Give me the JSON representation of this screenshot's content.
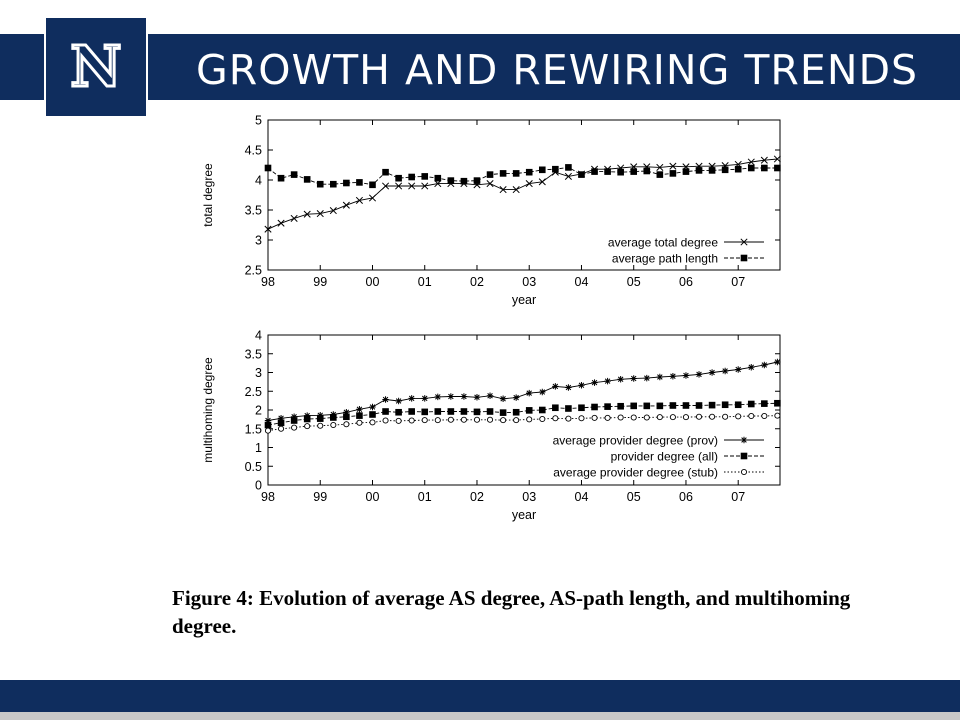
{
  "slide": {
    "title": "GROWTH AND REWIRING TRENDS",
    "logo_letter": "N",
    "brand_color": "#0f2d5e",
    "caption": "Figure 4: Evolution of average AS degree, AS-path length, and multihoming degree."
  },
  "chart_data": [
    {
      "type": "line",
      "ylabel": "total degree",
      "xlabel": "year",
      "xlim": [
        1998,
        2007.8
      ],
      "ylim": [
        2.5,
        5
      ],
      "yticks": [
        "2.5",
        "3",
        "3.5",
        "4",
        "4.5",
        "5"
      ],
      "xticks": [
        "98",
        "99",
        "00",
        "01",
        "02",
        "03",
        "04",
        "05",
        "06",
        "07"
      ],
      "legend_position": "bottom-right",
      "series": [
        {
          "name": "average total degree",
          "marker": "x",
          "dash": "solid",
          "points": [
            [
              1998.0,
              3.18
            ],
            [
              1998.25,
              3.28
            ],
            [
              1998.5,
              3.36
            ],
            [
              1998.75,
              3.43
            ],
            [
              1999.0,
              3.44
            ],
            [
              1999.25,
              3.49
            ],
            [
              1999.5,
              3.58
            ],
            [
              1999.75,
              3.66
            ],
            [
              2000.0,
              3.7
            ],
            [
              2000.25,
              3.9
            ],
            [
              2000.5,
              3.9
            ],
            [
              2000.75,
              3.9
            ],
            [
              2001.0,
              3.9
            ],
            [
              2001.25,
              3.94
            ],
            [
              2001.5,
              3.94
            ],
            [
              2001.75,
              3.94
            ],
            [
              2002.0,
              3.92
            ],
            [
              2002.25,
              3.94
            ],
            [
              2002.5,
              3.84
            ],
            [
              2002.75,
              3.84
            ],
            [
              2003.0,
              3.94
            ],
            [
              2003.25,
              3.97
            ],
            [
              2003.5,
              4.13
            ],
            [
              2003.75,
              4.06
            ],
            [
              2004.0,
              4.1
            ],
            [
              2004.25,
              4.18
            ],
            [
              2004.5,
              4.18
            ],
            [
              2004.75,
              4.2
            ],
            [
              2005.0,
              4.22
            ],
            [
              2005.25,
              4.22
            ],
            [
              2005.5,
              4.21
            ],
            [
              2005.75,
              4.23
            ],
            [
              2006.0,
              4.22
            ],
            [
              2006.25,
              4.23
            ],
            [
              2006.5,
              4.23
            ],
            [
              2006.75,
              4.24
            ],
            [
              2007.0,
              4.26
            ],
            [
              2007.25,
              4.3
            ],
            [
              2007.5,
              4.33
            ],
            [
              2007.75,
              4.35
            ]
          ]
        },
        {
          "name": "average path length",
          "marker": "square",
          "dash": "dashed",
          "points": [
            [
              1998.0,
              4.2
            ],
            [
              1998.25,
              4.03
            ],
            [
              1998.5,
              4.09
            ],
            [
              1998.75,
              4.01
            ],
            [
              1999.0,
              3.93
            ],
            [
              1999.25,
              3.93
            ],
            [
              1999.5,
              3.95
            ],
            [
              1999.75,
              3.96
            ],
            [
              2000.0,
              3.92
            ],
            [
              2000.25,
              4.13
            ],
            [
              2000.5,
              4.03
            ],
            [
              2000.75,
              4.05
            ],
            [
              2001.0,
              4.06
            ],
            [
              2001.25,
              4.03
            ],
            [
              2001.5,
              3.99
            ],
            [
              2001.75,
              3.98
            ],
            [
              2002.0,
              3.99
            ],
            [
              2002.25,
              4.09
            ],
            [
              2002.5,
              4.11
            ],
            [
              2002.75,
              4.11
            ],
            [
              2003.0,
              4.13
            ],
            [
              2003.25,
              4.17
            ],
            [
              2003.5,
              4.18
            ],
            [
              2003.75,
              4.21
            ],
            [
              2004.0,
              4.09
            ],
            [
              2004.25,
              4.14
            ],
            [
              2004.5,
              4.14
            ],
            [
              2004.75,
              4.13
            ],
            [
              2005.0,
              4.14
            ],
            [
              2005.25,
              4.15
            ],
            [
              2005.5,
              4.09
            ],
            [
              2005.75,
              4.11
            ],
            [
              2006.0,
              4.14
            ],
            [
              2006.25,
              4.16
            ],
            [
              2006.5,
              4.16
            ],
            [
              2006.75,
              4.17
            ],
            [
              2007.0,
              4.18
            ],
            [
              2007.25,
              4.2
            ],
            [
              2007.5,
              4.2
            ],
            [
              2007.75,
              4.2
            ]
          ]
        }
      ]
    },
    {
      "type": "line",
      "ylabel": "multihoming degree",
      "xlabel": "year",
      "xlim": [
        1998,
        2007.8
      ],
      "ylim": [
        0,
        4
      ],
      "yticks": [
        "0",
        "0.5",
        "1",
        "1.5",
        "2",
        "2.5",
        "3",
        "3.5",
        "4"
      ],
      "xticks": [
        "98",
        "99",
        "00",
        "01",
        "02",
        "03",
        "04",
        "05",
        "06",
        "07"
      ],
      "legend_position": "bottom-right",
      "series": [
        {
          "name": "average provider degree (prov)",
          "marker": "star",
          "dash": "solid",
          "points": [
            [
              1998.0,
              1.72
            ],
            [
              1998.25,
              1.78
            ],
            [
              1998.5,
              1.82
            ],
            [
              1998.75,
              1.85
            ],
            [
              1999.0,
              1.86
            ],
            [
              1999.25,
              1.88
            ],
            [
              1999.5,
              1.94
            ],
            [
              1999.75,
              2.02
            ],
            [
              2000.0,
              2.08
            ],
            [
              2000.25,
              2.28
            ],
            [
              2000.5,
              2.24
            ],
            [
              2000.75,
              2.31
            ],
            [
              2001.0,
              2.31
            ],
            [
              2001.25,
              2.35
            ],
            [
              2001.5,
              2.36
            ],
            [
              2001.75,
              2.36
            ],
            [
              2002.0,
              2.34
            ],
            [
              2002.25,
              2.38
            ],
            [
              2002.5,
              2.3
            ],
            [
              2002.75,
              2.33
            ],
            [
              2003.0,
              2.45
            ],
            [
              2003.25,
              2.48
            ],
            [
              2003.5,
              2.63
            ],
            [
              2003.75,
              2.6
            ],
            [
              2004.0,
              2.66
            ],
            [
              2004.25,
              2.73
            ],
            [
              2004.5,
              2.77
            ],
            [
              2004.75,
              2.82
            ],
            [
              2005.0,
              2.84
            ],
            [
              2005.25,
              2.85
            ],
            [
              2005.5,
              2.88
            ],
            [
              2005.75,
              2.9
            ],
            [
              2006.0,
              2.92
            ],
            [
              2006.25,
              2.95
            ],
            [
              2006.5,
              3.0
            ],
            [
              2006.75,
              3.04
            ],
            [
              2007.0,
              3.08
            ],
            [
              2007.25,
              3.14
            ],
            [
              2007.5,
              3.2
            ],
            [
              2007.75,
              3.28
            ]
          ]
        },
        {
          "name": "provider degree (all)",
          "marker": "square",
          "dash": "dashed",
          "points": [
            [
              1998.0,
              1.6
            ],
            [
              1998.25,
              1.66
            ],
            [
              1998.5,
              1.72
            ],
            [
              1998.75,
              1.76
            ],
            [
              1999.0,
              1.77
            ],
            [
              1999.25,
              1.8
            ],
            [
              1999.5,
              1.82
            ],
            [
              1999.75,
              1.85
            ],
            [
              2000.0,
              1.88
            ],
            [
              2000.25,
              1.96
            ],
            [
              2000.5,
              1.94
            ],
            [
              2000.75,
              1.96
            ],
            [
              2001.0,
              1.95
            ],
            [
              2001.25,
              1.96
            ],
            [
              2001.5,
              1.96
            ],
            [
              2001.75,
              1.96
            ],
            [
              2002.0,
              1.95
            ],
            [
              2002.25,
              1.96
            ],
            [
              2002.5,
              1.93
            ],
            [
              2002.75,
              1.94
            ],
            [
              2003.0,
              1.99
            ],
            [
              2003.25,
              2.0
            ],
            [
              2003.5,
              2.06
            ],
            [
              2003.75,
              2.04
            ],
            [
              2004.0,
              2.06
            ],
            [
              2004.25,
              2.08
            ],
            [
              2004.5,
              2.09
            ],
            [
              2004.75,
              2.1
            ],
            [
              2005.0,
              2.11
            ],
            [
              2005.25,
              2.11
            ],
            [
              2005.5,
              2.11
            ],
            [
              2005.75,
              2.12
            ],
            [
              2006.0,
              2.12
            ],
            [
              2006.25,
              2.12
            ],
            [
              2006.5,
              2.13
            ],
            [
              2006.75,
              2.14
            ],
            [
              2007.0,
              2.14
            ],
            [
              2007.25,
              2.16
            ],
            [
              2007.5,
              2.17
            ],
            [
              2007.75,
              2.18
            ]
          ]
        },
        {
          "name": "average provider degree (stub)",
          "marker": "circle",
          "dash": "dotted",
          "points": [
            [
              1998.0,
              1.45
            ],
            [
              1998.25,
              1.5
            ],
            [
              1998.5,
              1.53
            ],
            [
              1998.75,
              1.57
            ],
            [
              1999.0,
              1.58
            ],
            [
              1999.25,
              1.6
            ],
            [
              1999.5,
              1.62
            ],
            [
              1999.75,
              1.66
            ],
            [
              2000.0,
              1.67
            ],
            [
              2000.25,
              1.72
            ],
            [
              2000.5,
              1.71
            ],
            [
              2000.75,
              1.72
            ],
            [
              2001.0,
              1.73
            ],
            [
              2001.25,
              1.73
            ],
            [
              2001.5,
              1.74
            ],
            [
              2001.75,
              1.74
            ],
            [
              2002.0,
              1.74
            ],
            [
              2002.25,
              1.74
            ],
            [
              2002.5,
              1.73
            ],
            [
              2002.75,
              1.73
            ],
            [
              2003.0,
              1.75
            ],
            [
              2003.25,
              1.76
            ],
            [
              2003.5,
              1.78
            ],
            [
              2003.75,
              1.77
            ],
            [
              2004.0,
              1.78
            ],
            [
              2004.25,
              1.79
            ],
            [
              2004.5,
              1.79
            ],
            [
              2004.75,
              1.8
            ],
            [
              2005.0,
              1.8
            ],
            [
              2005.25,
              1.8
            ],
            [
              2005.5,
              1.81
            ],
            [
              2005.75,
              1.81
            ],
            [
              2006.0,
              1.81
            ],
            [
              2006.25,
              1.82
            ],
            [
              2006.5,
              1.82
            ],
            [
              2006.75,
              1.82
            ],
            [
              2007.0,
              1.83
            ],
            [
              2007.25,
              1.84
            ],
            [
              2007.5,
              1.84
            ],
            [
              2007.75,
              1.85
            ]
          ]
        }
      ]
    }
  ]
}
